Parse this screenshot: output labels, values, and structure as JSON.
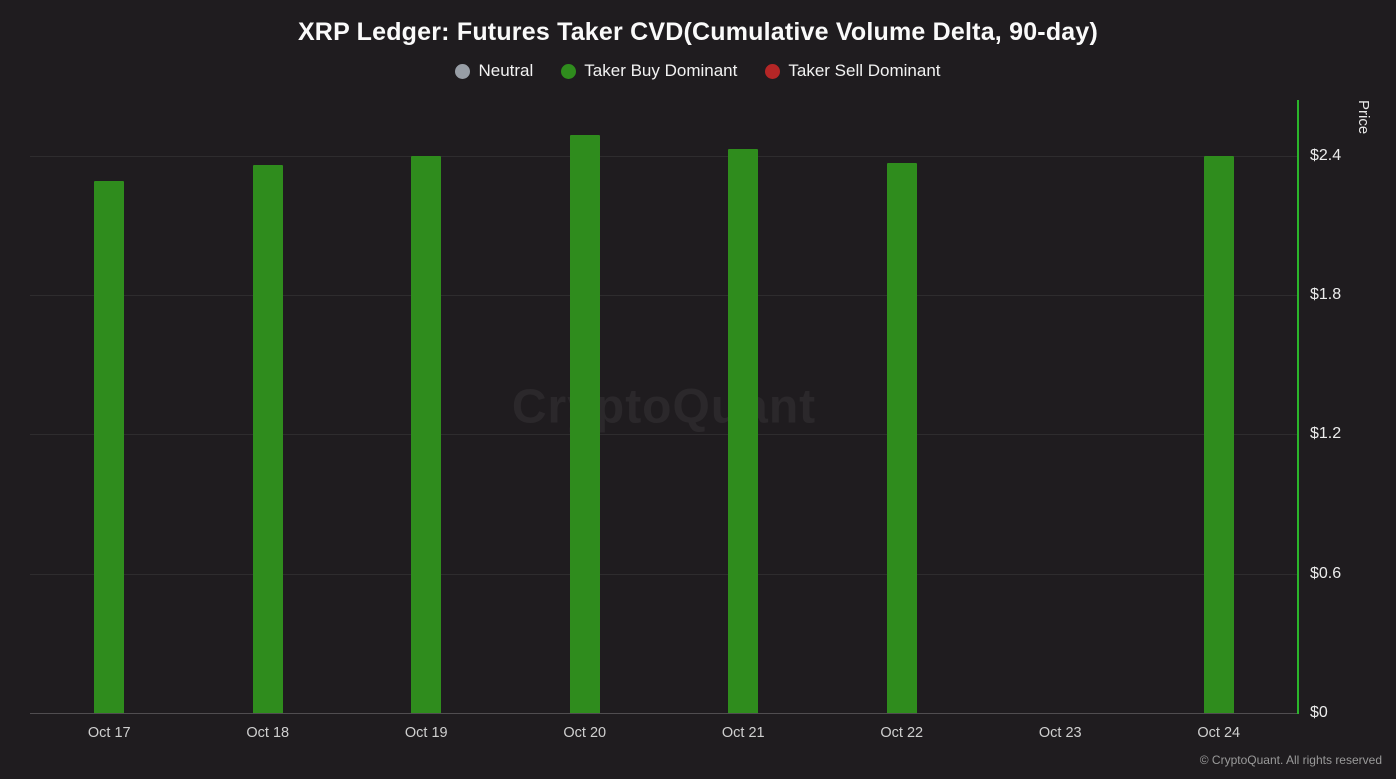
{
  "watermark": "CryptoQuant",
  "footer": "© CryptoQuant. All rights reserved",
  "chart_data": {
    "type": "bar",
    "title": "XRP Ledger: Futures Taker CVD(Cumulative Volume Delta, 90-day)",
    "categories": [
      "Oct 17",
      "Oct 18",
      "Oct 19",
      "Oct 20",
      "Oct 21",
      "Oct 22",
      "Oct 23",
      "Oct 24"
    ],
    "values": [
      2.29,
      2.36,
      2.4,
      2.49,
      2.43,
      2.37,
      null,
      2.4
    ],
    "xlabel": "",
    "ylabel": "Price",
    "y_ticks": [
      "$2.4",
      "$1.8",
      "$1.2",
      "$0.6",
      "$0"
    ],
    "y_tick_values": [
      2.4,
      1.8,
      1.2,
      0.6,
      0
    ],
    "ylim": [
      0,
      2.64
    ],
    "grid": true,
    "legend_position": "top",
    "bar_color": "#2f8c1d",
    "axis_line_color": "#2bb52b",
    "legend": [
      {
        "label": "Neutral",
        "color": "#989ea6"
      },
      {
        "label": "Taker Buy Dominant",
        "color": "#2f8c1d"
      },
      {
        "label": "Taker Sell Dominant",
        "color": "#b42626"
      }
    ]
  }
}
